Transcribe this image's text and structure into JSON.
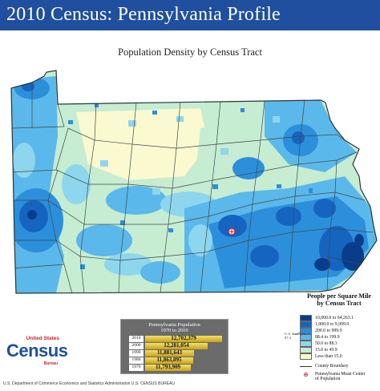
{
  "header": {
    "title": "2010 Census: Pennsylvania Profile"
  },
  "map": {
    "subtitle": "Population Density by Census Tract",
    "colors": {
      "background": "#ffffff",
      "header": "#1f4f9e",
      "boundary": "#3d4a4a",
      "mean_center": "#c0202a"
    }
  },
  "legend": {
    "title_lines": [
      "People per Square Mile",
      "by Census Tract"
    ],
    "classes": [
      {
        "label": "10,000.0 to 64,263.1",
        "color": "#0a3c8c"
      },
      {
        "label": "1,000.0 to 9,999.9",
        "color": "#1565c0"
      },
      {
        "label": "200.0 to 999.9",
        "color": "#2c8fdb"
      },
      {
        "label": "88.4 to 199.9",
        "color": "#5bb8ea"
      },
      {
        "label": "50.0 to 88.3",
        "color": "#8ed6ee"
      },
      {
        "label": "15.0 to 49.9",
        "color": "#c6ecd2"
      },
      {
        "label": "Less than 15.0",
        "color": "#fbf9d0"
      }
    ],
    "us_density_note": [
      "U.S. density is",
      "87.4"
    ],
    "county_boundary_label": "County Boundary",
    "mean_center_label_lines": [
      "Pennsylvania Mean Center",
      "of Population"
    ]
  },
  "population_inset": {
    "title_lines": [
      "Pennsylvania Population",
      "1970 to 2010"
    ],
    "rows": [
      {
        "year": "2010",
        "value": "12,702,379",
        "population": 12702379
      },
      {
        "year": "2000",
        "value": "12,281,054",
        "population": 12281054
      },
      {
        "year": "1990",
        "value": "11,881,643",
        "population": 11881643
      },
      {
        "year": "1980",
        "value": "11,863,895",
        "population": 11863895
      },
      {
        "year": "1970",
        "value": "11,793,909",
        "population": 11793909
      }
    ]
  },
  "logo": {
    "top": "United States",
    "main": "Census",
    "bottom": "Bureau"
  },
  "credit": "U.S. Department of Commerce  Economics and Statistics Administration  U.S. CENSUS BUREAU"
}
